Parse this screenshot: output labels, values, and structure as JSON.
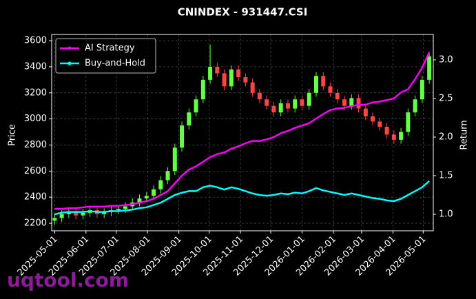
{
  "chart_data": {
    "type": "candlestick",
    "title": "CNINDEX - 931447.CSI",
    "ylabel": "Price",
    "y2label": "Return",
    "watermark": "uqtool.com",
    "up_color": "#66ff44",
    "down_color": "#ff4444",
    "grid": true,
    "legend": "upper left",
    "xlim": [
      "2025-04-28",
      "2026-05-11"
    ],
    "xticks": [
      "2025-05-01",
      "2025-06-01",
      "2025-07-01",
      "2025-08-01",
      "2025-09-01",
      "2025-10-01",
      "2025-11-01",
      "2025-12-01",
      "2026-01-01",
      "2026-02-01",
      "2026-03-01",
      "2026-04-01",
      "2026-05-01"
    ],
    "ylim": [
      2142,
      3648
    ],
    "yticks": [
      2200,
      2400,
      2600,
      2800,
      3000,
      3200,
      3400,
      3600
    ],
    "y2lim": [
      0.786,
      3.33
    ],
    "y2ticks": [
      {
        "value": 1,
        "label": "1.0"
      },
      1.5,
      {
        "value": 2,
        "label": "2.0"
      },
      2.5,
      {
        "value": 3,
        "label": "3.0"
      }
    ],
    "x": [
      "2025-05-01",
      "2025-05-08",
      "2025-05-15",
      "2025-05-22",
      "2025-05-29",
      "2025-06-05",
      "2025-06-12",
      "2025-06-19",
      "2025-06-26",
      "2025-07-03",
      "2025-07-10",
      "2025-07-17",
      "2025-07-24",
      "2025-07-31",
      "2025-08-07",
      "2025-08-14",
      "2025-08-21",
      "2025-08-28",
      "2025-09-04",
      "2025-09-11",
      "2025-09-18",
      "2025-09-25",
      "2025-10-02",
      "2025-10-09",
      "2025-10-16",
      "2025-10-23",
      "2025-10-30",
      "2025-11-06",
      "2025-11-13",
      "2025-11-20",
      "2025-11-27",
      "2025-12-04",
      "2025-12-11",
      "2025-12-18",
      "2025-12-25",
      "2026-01-01",
      "2026-01-08",
      "2026-01-15",
      "2026-01-22",
      "2026-01-29",
      "2026-02-05",
      "2026-02-12",
      "2026-02-19",
      "2026-02-26",
      "2026-03-05",
      "2026-03-12",
      "2026-03-19",
      "2026-03-26",
      "2026-04-02",
      "2026-04-09",
      "2026-04-16",
      "2026-04-23",
      "2026-04-30",
      "2026-05-07"
    ],
    "open": [
      2220,
      2240,
      2270,
      2290,
      2260,
      2280,
      2300,
      2270,
      2285,
      2300,
      2310,
      2330,
      2360,
      2390,
      2410,
      2460,
      2530,
      2600,
      2780,
      2950,
      3050,
      3150,
      3300,
      3400,
      3350,
      3250,
      3380,
      3320,
      3280,
      3200,
      3150,
      3100,
      3050,
      3120,
      3080,
      3150,
      3100,
      3200,
      3330,
      3250,
      3200,
      3150,
      3100,
      3160,
      3080,
      3020,
      2980,
      2940,
      2880,
      2840,
      2900,
      3050,
      3150,
      3300
    ],
    "high": [
      2270,
      2300,
      2320,
      2320,
      2310,
      2330,
      2330,
      2315,
      2330,
      2340,
      2360,
      2390,
      2420,
      2440,
      2490,
      2560,
      2630,
      2810,
      2980,
      3080,
      3180,
      3330,
      3570,
      3430,
      3380,
      3410,
      3410,
      3350,
      3310,
      3230,
      3180,
      3130,
      3150,
      3150,
      3180,
      3180,
      3230,
      3360,
      3360,
      3280,
      3230,
      3180,
      3190,
      3190,
      3110,
      3050,
      3010,
      2970,
      2910,
      2930,
      3080,
      3180,
      3330,
      3510
    ],
    "low": [
      2190,
      2210,
      2240,
      2230,
      2230,
      2250,
      2240,
      2240,
      2255,
      2270,
      2280,
      2300,
      2330,
      2360,
      2380,
      2430,
      2500,
      2570,
      2750,
      2920,
      3020,
      3120,
      3270,
      3320,
      3220,
      3220,
      3290,
      3250,
      3170,
      3120,
      3070,
      3020,
      3020,
      3050,
      3050,
      3070,
      3070,
      3170,
      3220,
      3170,
      3120,
      3070,
      3070,
      3050,
      2990,
      2950,
      2910,
      2850,
      2810,
      2810,
      2870,
      3020,
      3120,
      3270
    ],
    "close": [
      2240,
      2270,
      2290,
      2260,
      2280,
      2300,
      2270,
      2285,
      2300,
      2310,
      2330,
      2360,
      2390,
      2410,
      2460,
      2530,
      2600,
      2780,
      2950,
      3050,
      3150,
      3300,
      3400,
      3350,
      3250,
      3380,
      3320,
      3280,
      3200,
      3150,
      3100,
      3050,
      3120,
      3080,
      3150,
      3100,
      3200,
      3330,
      3250,
      3200,
      3150,
      3100,
      3160,
      3080,
      3020,
      2980,
      2940,
      2880,
      2840,
      2900,
      3050,
      3150,
      3300,
      3480
    ],
    "series": [
      {
        "name": "AI Strategy",
        "color": "#ff00ff",
        "axis": "y2",
        "values": [
          1.07,
          1.07,
          1.08,
          1.08,
          1.09,
          1.1,
          1.1,
          1.1,
          1.11,
          1.11,
          1.12,
          1.13,
          1.15,
          1.17,
          1.2,
          1.25,
          1.3,
          1.4,
          1.5,
          1.58,
          1.62,
          1.68,
          1.74,
          1.78,
          1.8,
          1.85,
          1.88,
          1.92,
          1.95,
          1.95,
          1.97,
          2.0,
          2.05,
          2.08,
          2.12,
          2.15,
          2.18,
          2.24,
          2.3,
          2.35,
          2.37,
          2.38,
          2.4,
          2.42,
          2.42,
          2.45,
          2.46,
          2.48,
          2.5,
          2.58,
          2.62,
          2.75,
          2.9,
          3.1
        ]
      },
      {
        "name": "Buy-and-Hold",
        "color": "#00ffff",
        "axis": "y2",
        "values": [
          1.0,
          1.02,
          1.03,
          1.03,
          1.03,
          1.04,
          1.03,
          1.03,
          1.04,
          1.04,
          1.05,
          1.06,
          1.08,
          1.09,
          1.12,
          1.15,
          1.2,
          1.25,
          1.28,
          1.3,
          1.3,
          1.35,
          1.37,
          1.35,
          1.32,
          1.35,
          1.33,
          1.3,
          1.27,
          1.25,
          1.24,
          1.25,
          1.27,
          1.26,
          1.28,
          1.27,
          1.3,
          1.34,
          1.31,
          1.29,
          1.27,
          1.25,
          1.27,
          1.25,
          1.23,
          1.21,
          1.2,
          1.18,
          1.17,
          1.2,
          1.25,
          1.3,
          1.35,
          1.43
        ]
      }
    ]
  }
}
